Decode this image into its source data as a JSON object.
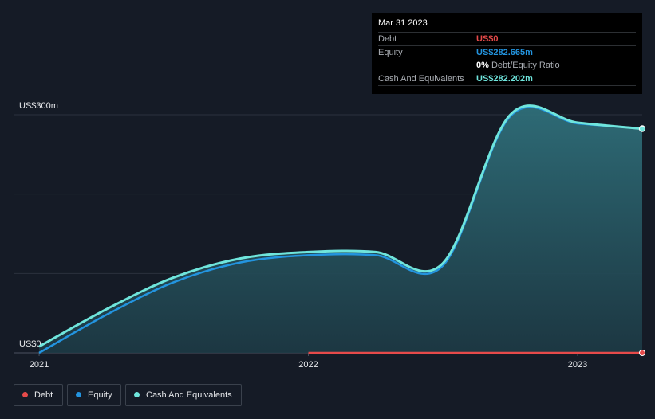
{
  "chart_data": {
    "type": "line",
    "x": [
      2021.0,
      2021.25,
      2021.5,
      2021.75,
      2022.0,
      2022.25,
      2022.5,
      2022.75,
      2023.0,
      2023.24
    ],
    "series": [
      {
        "name": "Debt",
        "color": "#e64a4a",
        "values": [
          null,
          null,
          null,
          null,
          0,
          0,
          0,
          0,
          0,
          0
        ]
      },
      {
        "name": "Equity",
        "color": "#2394df",
        "values": [
          0,
          48,
          89,
          114,
          123,
          123,
          110,
          298,
          289,
          282.665
        ]
      },
      {
        "name": "Cash And Equivalents",
        "color": "#6fe5dc",
        "values": [
          8,
          55,
          95,
          119,
          127,
          127,
          113,
          300,
          290,
          282.202
        ],
        "area": true
      }
    ],
    "xlim": [
      2020.905,
      2023.24
    ],
    "xticks": [
      2021,
      2022,
      2023
    ],
    "ylim": [
      0,
      300
    ],
    "yticks": [
      {
        "value": 0,
        "label": "US$0"
      },
      {
        "value": 100,
        "label": null
      },
      {
        "value": 200,
        "label": null
      },
      {
        "value": 300,
        "label": "US$300m"
      }
    ],
    "grid": true
  },
  "tooltip": {
    "date": "Mar 31 2023",
    "rows": [
      {
        "label": "Debt",
        "value": "US$0"
      },
      {
        "label": "Equity",
        "value": "US$282.665m"
      },
      {
        "ratio": "0%",
        "ratio_text": "Debt/Equity Ratio"
      },
      {
        "label": "Cash And Equivalents",
        "value": "US$282.202m"
      }
    ]
  }
}
